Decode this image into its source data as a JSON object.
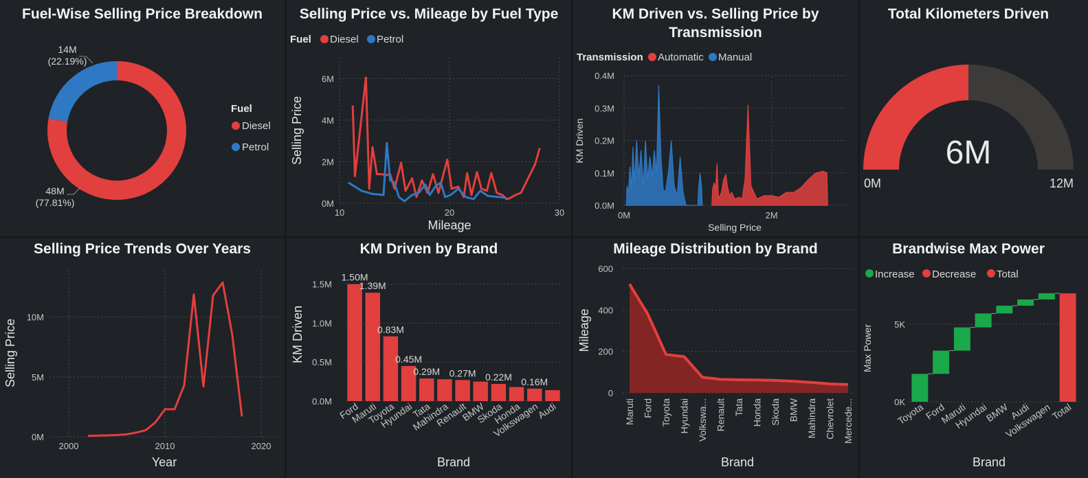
{
  "colors": {
    "red": "#e23f3f",
    "blue": "#2f78c4",
    "green": "#1ba84a",
    "darkred": "#8e2626",
    "track": "#3d3b39"
  },
  "panels": {
    "donut": {
      "title": "Fuel-Wise Selling Price Breakdown",
      "legend_title": "Fuel",
      "chart_data": {
        "type": "pie",
        "donut": true,
        "legend": "right",
        "slices": [
          {
            "name": "Diesel",
            "value_label": "48M",
            "pct_label": "(77.81%)",
            "pct": 77.81
          },
          {
            "name": "Petrol",
            "value_label": "14M",
            "pct_label": "(22.19%)",
            "pct": 22.19
          }
        ]
      }
    },
    "fuel_line": {
      "title": "Selling Price vs. Mileage by Fuel Type",
      "legend_title": "Fuel",
      "chart_data": {
        "type": "line",
        "xlabel": "Mileage",
        "ylabel": "Selling Price",
        "xlim": [
          10,
          30
        ],
        "ylim": [
          0,
          7000000
        ],
        "xticks": [
          {
            "v": 10,
            "t": "10"
          },
          {
            "v": 20,
            "t": "20"
          },
          {
            "v": 30,
            "t": "30"
          }
        ],
        "yticks": [
          {
            "v": 0,
            "t": "0M"
          },
          {
            "v": 2000000,
            "t": "2M"
          },
          {
            "v": 4000000,
            "t": "4M"
          },
          {
            "v": 6000000,
            "t": "6M"
          }
        ],
        "series": [
          {
            "name": "Diesel",
            "points": [
              [
                11.2,
                4700000
              ],
              [
                11.4,
                1300000
              ],
              [
                12.4,
                6050000
              ],
              [
                12.7,
                700000
              ],
              [
                13.0,
                2700000
              ],
              [
                13.4,
                1400000
              ],
              [
                13.8,
                1400000
              ],
              [
                14.2,
                1350000
              ],
              [
                14.6,
                1400000
              ],
              [
                15.0,
                700000
              ],
              [
                15.6,
                1950000
              ],
              [
                16.0,
                600000
              ],
              [
                16.6,
                1200000
              ],
              [
                17.0,
                300000
              ],
              [
                17.5,
                1100000
              ],
              [
                18.0,
                500000
              ],
              [
                18.5,
                1400000
              ],
              [
                19.0,
                500000
              ],
              [
                19.8,
                2100000
              ],
              [
                20.2,
                700000
              ],
              [
                20.8,
                800000
              ],
              [
                21.3,
                300000
              ],
              [
                21.6,
                1450000
              ],
              [
                22.0,
                400000
              ],
              [
                22.5,
                1500000
              ],
              [
                22.9,
                700000
              ],
              [
                23.4,
                600000
              ],
              [
                23.8,
                1450000
              ],
              [
                24.3,
                500000
              ],
              [
                24.8,
                400000
              ],
              [
                25.2,
                200000
              ],
              [
                25.5,
                250000
              ],
              [
                26.0,
                400000
              ],
              [
                26.5,
                500000
              ],
              [
                27.8,
                1900000
              ],
              [
                28.2,
                2650000
              ]
            ]
          },
          {
            "name": "Petrol",
            "points": [
              [
                10.8,
                1000000
              ],
              [
                12.0,
                600000
              ],
              [
                13.0,
                450000
              ],
              [
                14.0,
                400000
              ],
              [
                14.3,
                2900000
              ],
              [
                14.6,
                1100000
              ],
              [
                15.0,
                1000000
              ],
              [
                15.4,
                300000
              ],
              [
                15.9,
                100000
              ],
              [
                16.6,
                400000
              ],
              [
                17.2,
                500000
              ],
              [
                17.8,
                900000
              ],
              [
                18.2,
                400000
              ],
              [
                18.7,
                800000
              ],
              [
                19.2,
                1000000
              ],
              [
                19.6,
                300000
              ],
              [
                20.1,
                400000
              ],
              [
                20.8,
                700000
              ],
              [
                21.5,
                300000
              ],
              [
                22.2,
                200000
              ],
              [
                22.8,
                600000
              ],
              [
                23.5,
                350000
              ],
              [
                24.5,
                300000
              ],
              [
                25.2,
                250000
              ]
            ]
          }
        ]
      }
    },
    "km_trans": {
      "title": "KM Driven vs. Selling Price by",
      "title2": "Transmission",
      "legend_title": "Transmission",
      "chart_data": {
        "type": "area",
        "xlabel": "Selling Price",
        "ylabel": "KM Driven",
        "xlim": [
          0,
          3000000
        ],
        "ylim": [
          0,
          400000
        ],
        "xticks": [
          {
            "v": 0,
            "t": "0M"
          },
          {
            "v": 2000000,
            "t": "2M"
          }
        ],
        "yticks": [
          {
            "v": 0,
            "t": "0.0M"
          },
          {
            "v": 100000,
            "t": "0.1M"
          },
          {
            "v": 200000,
            "t": "0.2M"
          },
          {
            "v": 300000,
            "t": "0.3M"
          },
          {
            "v": 400000,
            "t": "0.4M"
          }
        ],
        "series": [
          {
            "name": "Automatic",
            "points": [
              [
                1190000,
                0
              ],
              [
                1200000,
                50000
              ],
              [
                1220000,
                70000
              ],
              [
                1240000,
                50000
              ],
              [
                1260000,
                130000
              ],
              [
                1280000,
                20000
              ],
              [
                1320000,
                40000
              ],
              [
                1350000,
                80000
              ],
              [
                1380000,
                95000
              ],
              [
                1400000,
                60000
              ],
              [
                1430000,
                30000
              ],
              [
                1460000,
                40000
              ],
              [
                1500000,
                20000
              ],
              [
                1560000,
                25000
              ],
              [
                1600000,
                20000
              ],
              [
                1640000,
                80000
              ],
              [
                1680000,
                310000
              ],
              [
                1720000,
                60000
              ],
              [
                1800000,
                20000
              ],
              [
                1900000,
                30000
              ],
              [
                2000000,
                30000
              ],
              [
                2100000,
                25000
              ],
              [
                2200000,
                40000
              ],
              [
                2300000,
                40000
              ],
              [
                2400000,
                55000
              ],
              [
                2500000,
                80000
              ],
              [
                2600000,
                100000
              ],
              [
                2700000,
                105000
              ],
              [
                2750000,
                100000
              ],
              [
                2760000,
                0
              ]
            ]
          },
          {
            "name": "Manual",
            "points": [
              [
                30000,
                0
              ],
              [
                40000,
                60000
              ],
              [
                60000,
                40000
              ],
              [
                80000,
                120000
              ],
              [
                100000,
                50000
              ],
              [
                120000,
                180000
              ],
              [
                140000,
                70000
              ],
              [
                170000,
                200000
              ],
              [
                200000,
                90000
              ],
              [
                230000,
                170000
              ],
              [
                260000,
                60000
              ],
              [
                290000,
                200000
              ],
              [
                320000,
                80000
              ],
              [
                350000,
                150000
              ],
              [
                380000,
                90000
              ],
              [
                410000,
                170000
              ],
              [
                440000,
                100000
              ],
              [
                470000,
                370000
              ],
              [
                500000,
                150000
              ],
              [
                530000,
                50000
              ],
              [
                560000,
                40000
              ],
              [
                600000,
                100000
              ],
              [
                640000,
                200000
              ],
              [
                680000,
                60000
              ],
              [
                720000,
                30000
              ],
              [
                760000,
                150000
              ],
              [
                800000,
                40000
              ],
              [
                840000,
                0
              ],
              [
                1000000,
                0
              ],
              [
                1010000,
                50000
              ],
              [
                1030000,
                100000
              ],
              [
                1050000,
                60000
              ],
              [
                1060000,
                0
              ]
            ]
          }
        ]
      }
    },
    "gauge": {
      "title": "Total Kilometers Driven",
      "chart_data": {
        "type": "gauge",
        "value": 6000000,
        "min": 0,
        "max": 12000000,
        "value_label": "6M",
        "min_label": "0M",
        "max_label": "12M"
      }
    },
    "years": {
      "title": "Selling Price Trends Over Years",
      "chart_data": {
        "type": "line",
        "xlabel": "Year",
        "ylabel": "Selling Price",
        "xlim": [
          1998,
          2022
        ],
        "ylim": [
          0,
          14000000
        ],
        "xticks": [
          {
            "v": 2000,
            "t": "2000"
          },
          {
            "v": 2010,
            "t": "2010"
          },
          {
            "v": 2020,
            "t": "2020"
          }
        ],
        "yticks": [
          {
            "v": 0,
            "t": "0M"
          },
          {
            "v": 5000000,
            "t": "5M"
          },
          {
            "v": 10000000,
            "t": "10M"
          }
        ],
        "series": [
          {
            "name": "Selling Price",
            "points": [
              [
                2002,
                80000
              ],
              [
                2003,
                100000
              ],
              [
                2004,
                120000
              ],
              [
                2005,
                150000
              ],
              [
                2006,
                200000
              ],
              [
                2007,
                350000
              ],
              [
                2008,
                550000
              ],
              [
                2009,
                1200000
              ],
              [
                2010,
                2300000
              ],
              [
                2011,
                2300000
              ],
              [
                2012,
                4300000
              ],
              [
                2013,
                11900000
              ],
              [
                2014,
                4200000
              ],
              [
                2015,
                11800000
              ],
              [
                2016,
                12900000
              ],
              [
                2017,
                8500000
              ],
              [
                2018,
                1700000
              ]
            ]
          }
        ]
      }
    },
    "km_brand": {
      "title": "KM Driven by Brand",
      "chart_data": {
        "type": "bar",
        "xlabel": "Brand",
        "ylabel": "KM Driven",
        "ylim": [
          0,
          1700000
        ],
        "yticks": [
          {
            "v": 0,
            "t": "0.0M"
          },
          {
            "v": 500000,
            "t": "0.5M"
          },
          {
            "v": 1000000,
            "t": "1.0M"
          },
          {
            "v": 1500000,
            "t": "1.5M"
          }
        ],
        "categories": [
          "Ford",
          "Maruti",
          "Toyota",
          "Hyundai",
          "Tata",
          "Mahindra",
          "Renault",
          "BMW",
          "Skoda",
          "Honda",
          "Volkswagen",
          "Audi"
        ],
        "values": [
          1500000,
          1390000,
          830000,
          450000,
          290000,
          280000,
          270000,
          250000,
          220000,
          180000,
          160000,
          140000
        ],
        "data_labels": [
          "1.50M",
          "1.39M",
          "0.83M",
          "0.45M",
          "0.29M",
          "",
          "0.27M",
          "",
          "0.22M",
          "",
          "0.16M",
          ""
        ]
      }
    },
    "mileage_brand": {
      "title": "Mileage Distribution by Brand",
      "chart_data": {
        "type": "area",
        "xlabel": "Brand",
        "ylabel": "Mileage",
        "ylim": [
          0,
          600
        ],
        "yticks": [
          {
            "v": 0,
            "t": "0"
          },
          {
            "v": 200,
            "t": "200"
          },
          {
            "v": 400,
            "t": "400"
          },
          {
            "v": 600,
            "t": "600"
          }
        ],
        "categories": [
          "Maruti",
          "Ford",
          "Toyota",
          "Hyundai",
          "Volkswa...",
          "Renault",
          "Tata",
          "Honda",
          "Skoda",
          "BMW",
          "Mahindra",
          "Chevrolet",
          "Mercede..."
        ],
        "values": [
          525,
          380,
          185,
          175,
          75,
          65,
          63,
          62,
          60,
          56,
          50,
          43,
          40
        ]
      }
    },
    "power": {
      "title": "Brandwise Max Power",
      "legend": [
        "Increase",
        "Decrease",
        "Total"
      ],
      "chart_data": {
        "type": "bar",
        "waterfall": true,
        "xlabel": "Brand",
        "ylabel": "Max Power",
        "ylim": [
          0,
          7800
        ],
        "yticks": [
          {
            "v": 0,
            "t": "0K"
          },
          {
            "v": 5000,
            "t": "5K"
          }
        ],
        "categories": [
          "Toyota",
          "Ford",
          "Maruti",
          "Hyundai",
          "BMW",
          "Audi",
          "Volkswagen",
          "Total"
        ],
        "increments": [
          1800,
          1500,
          1500,
          900,
          500,
          400,
          400
        ],
        "total": 7000
      }
    }
  }
}
